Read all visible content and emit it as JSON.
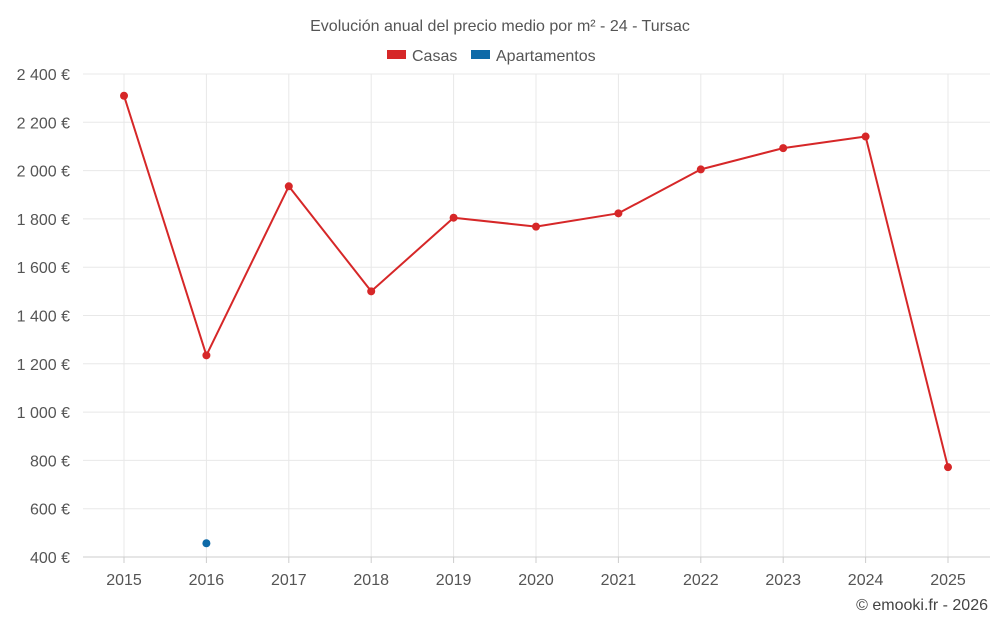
{
  "chart_data": {
    "type": "line",
    "title": "Evolución anual del precio medio por m² - 24 - Tursac",
    "categories": [
      "2015",
      "2016",
      "2017",
      "2018",
      "2019",
      "2020",
      "2021",
      "2022",
      "2023",
      "2024",
      "2025"
    ],
    "series": [
      {
        "name": "Casas",
        "color": "#d62728",
        "values": [
          2310,
          1235,
          1935,
          1500,
          1805,
          1768,
          1823,
          2005,
          2093,
          2141,
          772
        ]
      },
      {
        "name": "Apartamentos",
        "color": "#0e6aa8",
        "values": [
          null,
          457,
          null,
          null,
          null,
          null,
          null,
          null,
          null,
          null,
          null
        ]
      }
    ],
    "ylim": [
      400,
      2400
    ],
    "yticks": [
      400,
      600,
      800,
      1000,
      1200,
      1400,
      1600,
      1800,
      2000,
      2200,
      2400
    ],
    "ytick_labels": [
      "400 €",
      "600 €",
      "800 €",
      "1 000 €",
      "1 200 €",
      "1 400 €",
      "1 600 €",
      "1 800 €",
      "2 000 €",
      "2 200 €",
      "2 400 €"
    ],
    "xlabel": "",
    "ylabel": "",
    "grid": true,
    "legend_position": "top-center"
  },
  "credit": "© emooki.fr - 2026"
}
